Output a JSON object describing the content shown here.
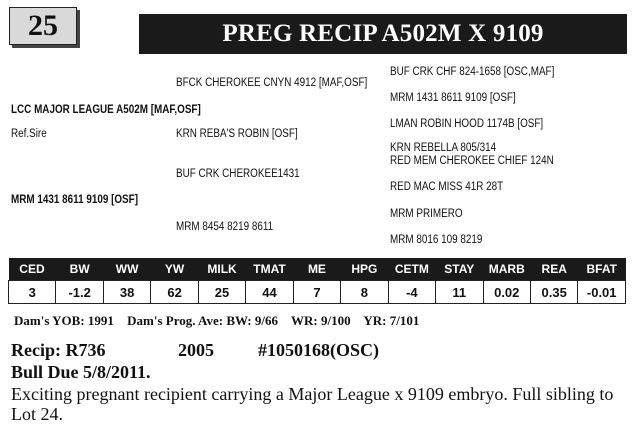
{
  "lot_number": "25",
  "title": "PREG RECIP  A502M X 9109",
  "pedigree": {
    "sire": "LCC MAJOR LEAGUE A502M [MAF,OSF]",
    "ref_sire_label": "Ref.Sire",
    "dam": "MRM 1431 8611 9109 [OSF]",
    "sire_sire": "BFCK CHEROKEE CNYN 4912 [MAF,OSF]",
    "sire_dam": "KRN REBA'S ROBIN  [OSF]",
    "dam_sire": "BUF CRK CHEROKEE1431",
    "dam_dam": "MRM 8454 8219 8611",
    "sss": "BUF CRK CHF 824-1658 [OSC,MAF]",
    "ssd": "MRM 1431 8611 9109 [OSF]",
    "sds": "LMAN ROBIN HOOD 1174B [OSF]",
    "sdd": "KRN REBELLA 805/314",
    "dss": "RED MEM CHEROKEE CHIEF 124N",
    "dsd": "RED MAC MISS 41R 28T",
    "dds": "MRM PRIMERO",
    "ddd": "MRM 8016 109 8219"
  },
  "epd": {
    "headers": [
      "CED",
      "BW",
      "WW",
      "YW",
      "MILK",
      "TMAT",
      "ME",
      "HPG",
      "CETM",
      "STAY",
      "MARB",
      "REA",
      "BFAT"
    ],
    "values": [
      "3",
      "-1.2",
      "38",
      "62",
      "25",
      "44",
      "7",
      "8",
      "-4",
      "11",
      "0.02",
      "0.35",
      "-0.01"
    ]
  },
  "dam_info": {
    "yob": "Dam's YOB: 1991",
    "prog_ave": "Dam's  Prog. Ave: BW:  9/66",
    "wr": "WR: 9/100",
    "yr": "YR: 7/101"
  },
  "recip": "Recip: R736",
  "year": "2005",
  "registration": "#1050168(OSC)",
  "bull_due": "Bull Due 5/8/2011.",
  "description": "Exciting pregnant recipient carrying a Major League x 9109 embryo.  Full sibling to Lot 24."
}
